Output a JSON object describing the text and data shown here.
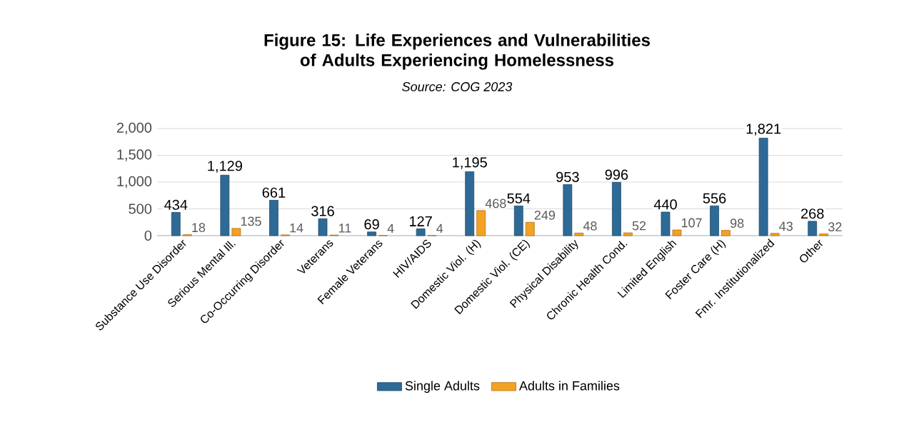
{
  "chart_data": {
    "type": "bar",
    "title": "Figure 15: Life Experiences and Vulnerabilities of Adults Experiencing Homelessness",
    "subtitle": "*Source: COG 2023*",
    "categories": [
      "Substance Use Disorder",
      "Serious Mental Ill.",
      "Co-Occurring Disorder",
      "Veterans",
      "Female Veterans",
      "HIV/AIDS",
      "Domestic Viol. (H)",
      "Domestic Viol. (CE)",
      "Physical Disability",
      "Chronic Health Cond.",
      "Limited English",
      "Foster Care (H)",
      "Fmr. Institutionalized",
      "Other"
    ],
    "series": [
      {
        "name": "Single Adults",
        "color": "#2e6a96",
        "values": [
          434,
          1129,
          661,
          316,
          69,
          127,
          1195,
          554,
          953,
          996,
          440,
          556,
          1821,
          268
        ],
        "value_labels": [
          "434",
          "1,129",
          "661",
          "316",
          "69",
          "127",
          "1,195",
          "554",
          "953",
          "996",
          "440",
          "556",
          "1,821",
          "268"
        ]
      },
      {
        "name": "Adults in Families",
        "color": "#f4a223",
        "values": [
          18,
          135,
          14,
          11,
          4,
          4,
          468,
          249,
          48,
          52,
          107,
          98,
          43,
          32
        ],
        "value_labels": [
          "18",
          "135",
          "14",
          "11",
          "4",
          "4",
          "468",
          "249",
          "48",
          "52",
          "107",
          "98",
          "43",
          "32"
        ]
      }
    ],
    "ylim": [
      0,
      2000
    ],
    "yticks": [
      {
        "value": 0,
        "label": "0"
      },
      {
        "value": 500,
        "label": "500"
      },
      {
        "value": 1000,
        "label": "1,000"
      },
      {
        "value": 1500,
        "label": "1,500"
      },
      {
        "value": 2000,
        "label": "2,000"
      }
    ],
    "grid": "y",
    "legend": "bottom"
  }
}
